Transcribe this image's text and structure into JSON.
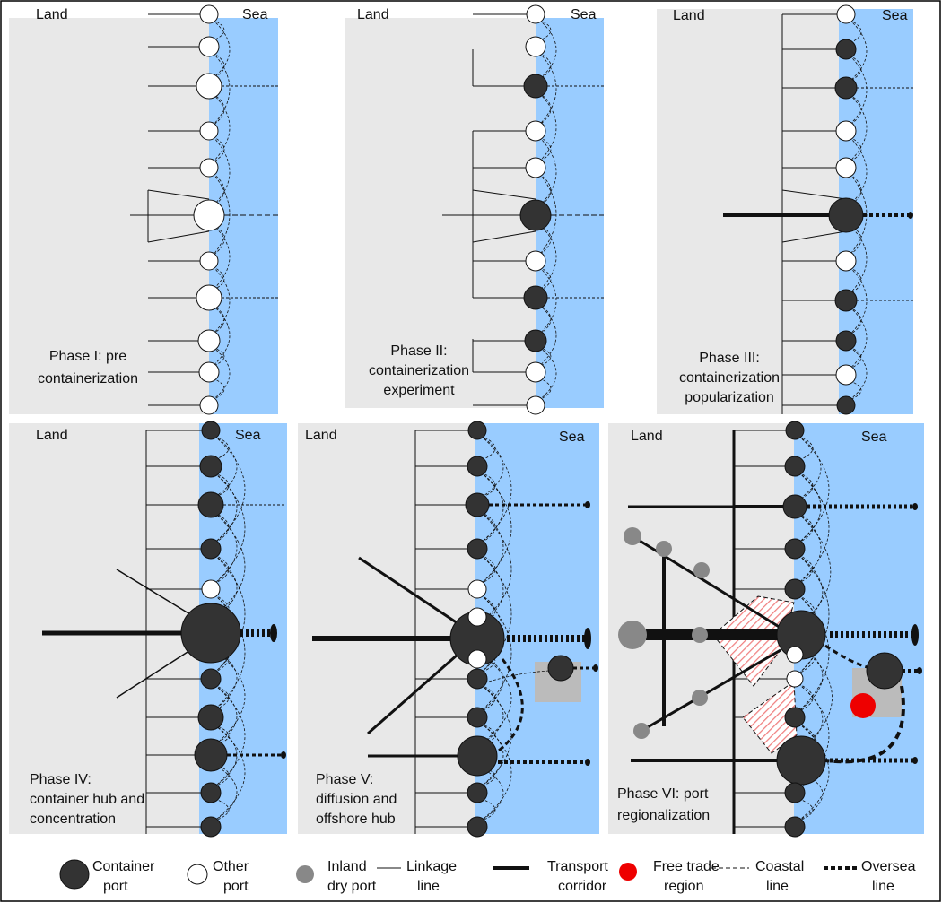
{
  "panels": [
    {
      "land": "Land",
      "sea": "Sea",
      "caption": [
        "Phase I: pre",
        "containerization"
      ]
    },
    {
      "land": "Land",
      "sea": "Sea",
      "caption": [
        "Phase II:",
        "containerization",
        "experiment"
      ]
    },
    {
      "land": "Land",
      "sea": "Sea",
      "caption": [
        "Phase III:",
        "containerization",
        "popularization"
      ]
    },
    {
      "land": "Land",
      "sea": "Sea",
      "caption": [
        "Phase IV:",
        "container hub and",
        "concentration"
      ]
    },
    {
      "land": "Land",
      "sea": "Sea",
      "caption": [
        "Phase V:",
        "diffusion and",
        "offshore hub"
      ]
    },
    {
      "land": "Land",
      "sea": "Sea",
      "caption": [
        "Phase VI: port",
        "regionalization"
      ]
    }
  ],
  "legend": [
    {
      "label": [
        "Container",
        "port"
      ]
    },
    {
      "label": [
        "Other",
        "port"
      ]
    },
    {
      "label": [
        "Inland",
        "dry port"
      ]
    },
    {
      "label": [
        "Linkage",
        "line"
      ]
    },
    {
      "label": [
        "Transport",
        "corridor"
      ]
    },
    {
      "label": [
        "Free trade",
        "region"
      ]
    },
    {
      "label": [
        "Coastal",
        "line"
      ]
    },
    {
      "label": [
        "Oversea",
        "line"
      ]
    }
  ]
}
